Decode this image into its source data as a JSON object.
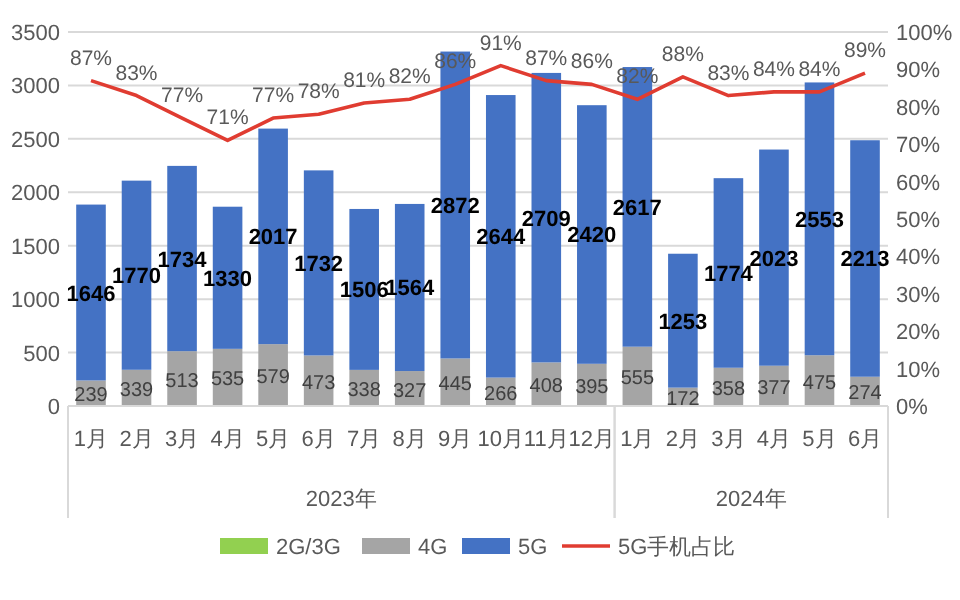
{
  "chart_data": {
    "type": "bar",
    "stacked": true,
    "categories": [
      "1月",
      "2月",
      "3月",
      "4月",
      "5月",
      "6月",
      "7月",
      "8月",
      "9月",
      "10月",
      "11月",
      "12月",
      "1月",
      "2月",
      "3月",
      "4月",
      "5月",
      "6月"
    ],
    "series": [
      {
        "name": "2G/3G",
        "color": "#92d050",
        "values": [
          0,
          0,
          0,
          0,
          0,
          0,
          0,
          0,
          0,
          0,
          0,
          0,
          0,
          0,
          0,
          0,
          0,
          0
        ]
      },
      {
        "name": "4G",
        "color": "#a5a5a5",
        "values": [
          239,
          339,
          513,
          535,
          579,
          473,
          338,
          327,
          445,
          266,
          408,
          395,
          555,
          172,
          358,
          377,
          475,
          274
        ],
        "value_labels": [
          "239",
          "339",
          "513",
          "535",
          "579",
          "473",
          "338",
          "327",
          "445",
          "266",
          "408",
          "395",
          "555",
          "172",
          "358",
          "377",
          "475",
          "274"
        ]
      },
      {
        "name": "5G",
        "color": "#4472c4",
        "values": [
          1646,
          1770,
          1734,
          1330,
          2017,
          1732,
          1506,
          1564,
          2872,
          2644,
          2709,
          2420,
          2617,
          1253,
          1774,
          2023,
          2553,
          2213
        ],
        "value_labels": [
          "1646",
          "1770",
          "1734",
          "1330",
          "2017",
          "1732",
          "1506",
          "1564",
          "2872",
          "2644",
          "2709",
          "2420",
          "2617",
          "1253",
          "1774",
          "2023",
          "2553",
          "2213"
        ]
      },
      {
        "name": "5G手机占比",
        "type": "line",
        "axis": "y2",
        "color": "#e03c31",
        "values": [
          87,
          83,
          77,
          71,
          77,
          78,
          81,
          82,
          86,
          91,
          87,
          86,
          82,
          88,
          83,
          84,
          84,
          89
        ],
        "value_labels": [
          "87%",
          "83%",
          "77%",
          "71%",
          "77%",
          "78%",
          "81%",
          "82%",
          "86%",
          "91%",
          "87%",
          "86%",
          "82%",
          "88%",
          "83%",
          "84%",
          "84%",
          "89%"
        ]
      }
    ],
    "ylim": [
      0,
      3500
    ],
    "yticks": [
      0,
      500,
      1000,
      1500,
      2000,
      2500,
      3000,
      3500
    ],
    "y2lim": [
      0,
      100
    ],
    "y2ticks": [
      {
        "value": 0,
        "label": "0%"
      },
      {
        "value": 10,
        "label": "10%"
      },
      {
        "value": 20,
        "label": "20%"
      },
      {
        "value": 30,
        "label": "30%"
      },
      {
        "value": 40,
        "label": "40%"
      },
      {
        "value": 50,
        "label": "50%"
      },
      {
        "value": 60,
        "label": "60%"
      },
      {
        "value": 70,
        "label": "70%"
      },
      {
        "value": 80,
        "label": "80%"
      },
      {
        "value": 90,
        "label": "90%"
      },
      {
        "value": 100,
        "label": "100%"
      }
    ],
    "annotations": [
      "2023年",
      "2024年"
    ],
    "grid": "y",
    "legend": "bottom"
  }
}
